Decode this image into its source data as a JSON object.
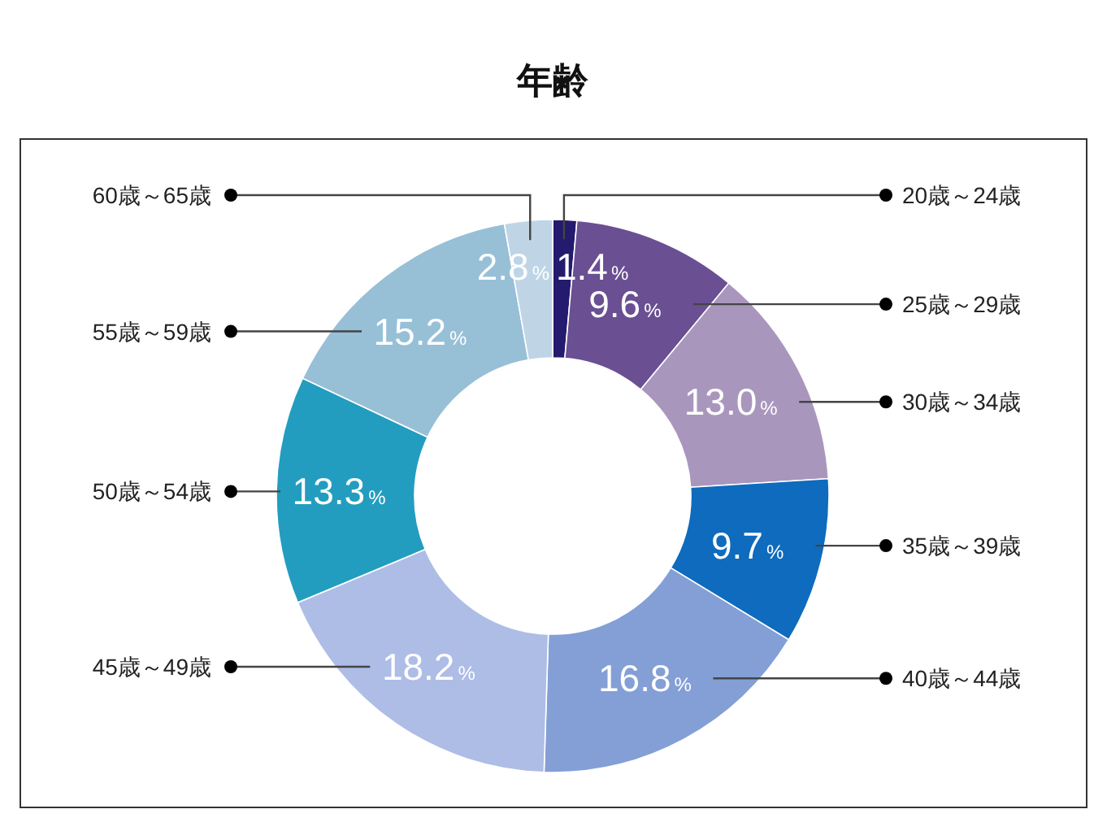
{
  "chart_data": {
    "type": "donut",
    "title": "年齢",
    "categories": [
      "20歳～24歳",
      "25歳～29歳",
      "30歳～34歳",
      "35歳～39歳",
      "40歳～44歳",
      "45歳～49歳",
      "50歳～54歳",
      "55歳～59歳",
      "60歳～65歳"
    ],
    "values": [
      1.4,
      9.6,
      13.0,
      9.7,
      16.8,
      18.2,
      13.3,
      15.2,
      2.8
    ],
    "value_labels": [
      "1.4%",
      "9.6%",
      "13.0%",
      "9.7%",
      "16.8%",
      "18.2%",
      "13.3%",
      "15.2%",
      "2.8%"
    ],
    "colors": [
      "#241a6e",
      "#6a4f93",
      "#a996bd",
      "#0e6bbd",
      "#839fd6",
      "#aebde6",
      "#239dbf",
      "#97c0d7",
      "#bfd5e6"
    ]
  }
}
